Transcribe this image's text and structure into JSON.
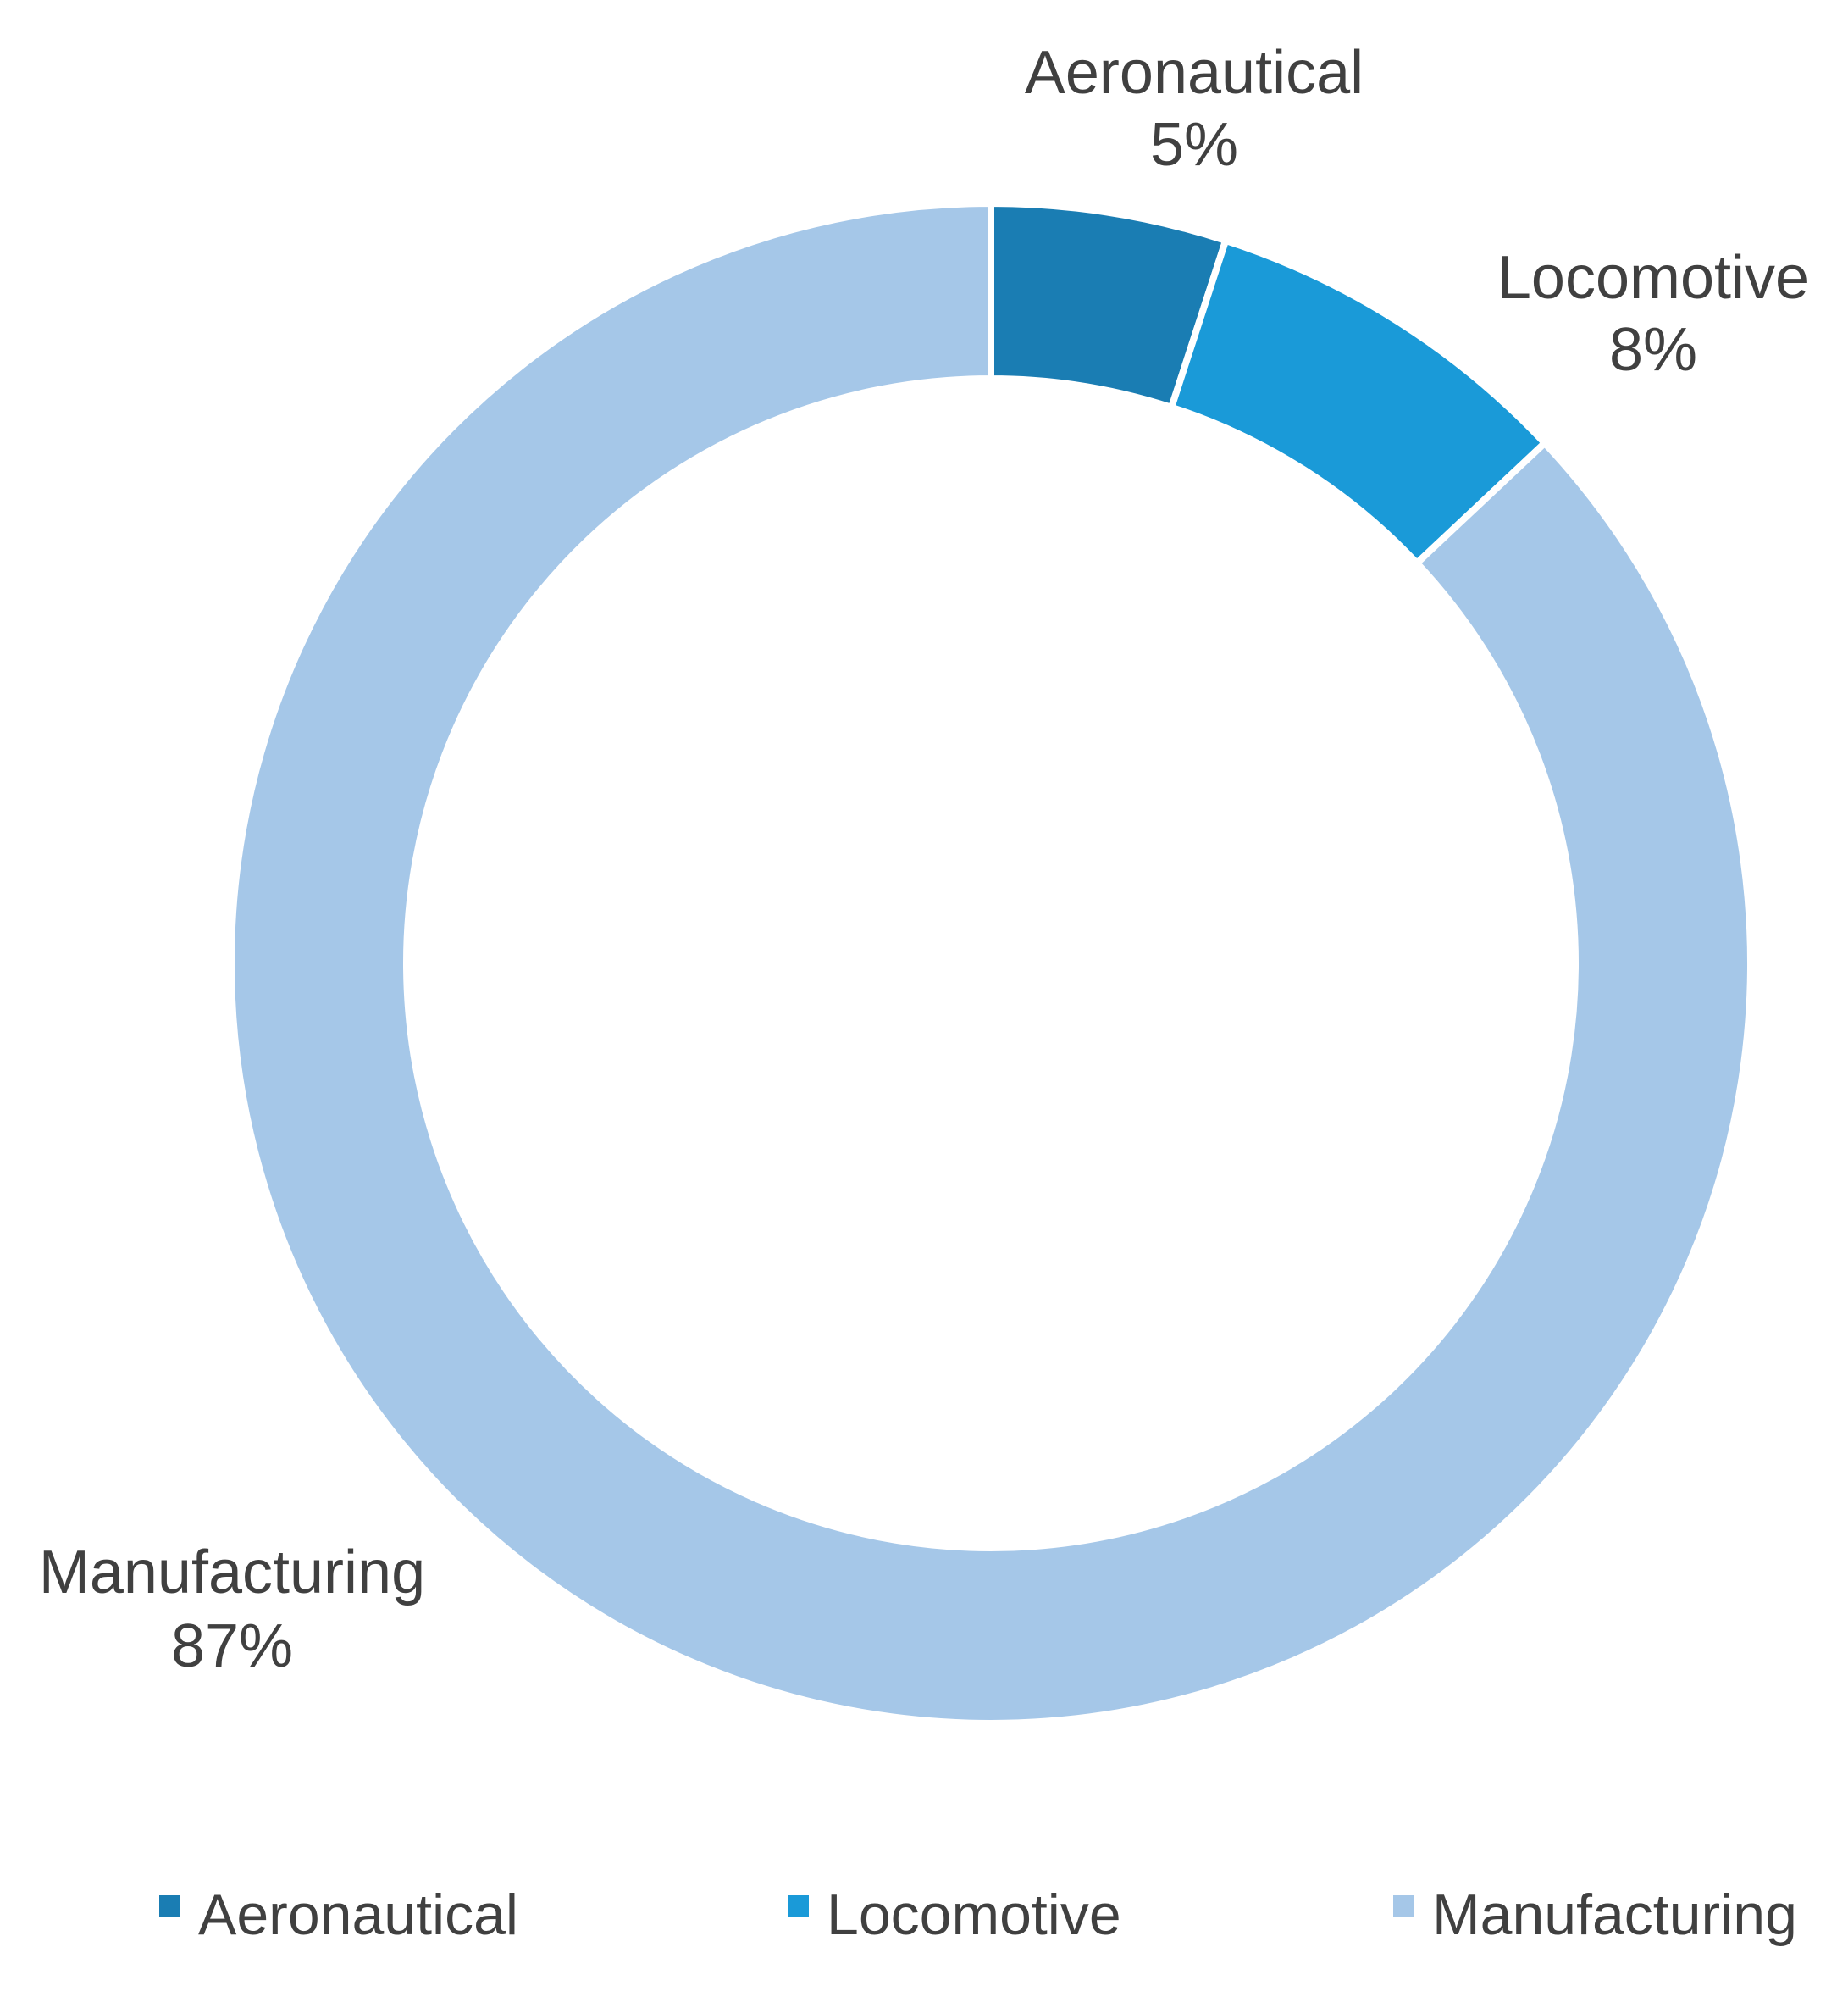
{
  "chart_data": {
    "type": "pie",
    "variant": "donut",
    "title": "",
    "categories": [
      "Aeronautical",
      "Locomotive",
      "Manufacturing"
    ],
    "values": [
      5,
      8,
      87
    ],
    "value_labels": [
      "5%",
      "8%",
      "87%"
    ],
    "colors": [
      "#1a7db3",
      "#1a9ad8",
      "#a5c7e8"
    ],
    "legend": {
      "position": "bottom",
      "items": [
        "Aeronautical",
        "Locomotive",
        "Manufacturing"
      ]
    }
  }
}
